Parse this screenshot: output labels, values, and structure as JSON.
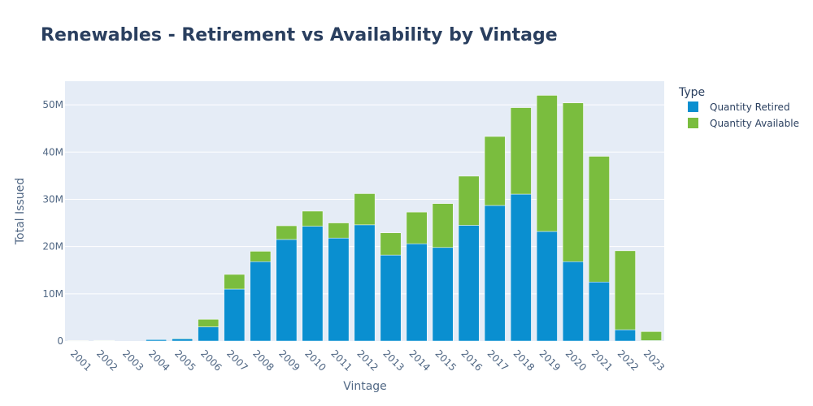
{
  "chart_data": {
    "type": "bar",
    "stacked": true,
    "title": "Renewables - Retirement vs Availability by Vintage",
    "xlabel": "Vintage",
    "ylabel": "Total Issued",
    "ylim": [
      0,
      55000000
    ],
    "yticks": [
      0,
      10000000,
      20000000,
      30000000,
      40000000,
      50000000
    ],
    "ytick_labels": [
      "0",
      "10M",
      "20M",
      "30M",
      "40M",
      "50M"
    ],
    "grid": true,
    "legend_title": "Type",
    "legend_position": "top-right",
    "categories": [
      "2001",
      "2002",
      "2003",
      "2004",
      "2005",
      "2006",
      "2007",
      "2008",
      "2009",
      "2010",
      "2011",
      "2012",
      "2013",
      "2014",
      "2015",
      "2016",
      "2017",
      "2018",
      "2019",
      "2020",
      "2021",
      "2022",
      "2023"
    ],
    "series": [
      {
        "name": "Quantity Retired",
        "color": "#0a8fd0",
        "values": [
          50000,
          100000,
          0,
          300000,
          500000,
          3000000,
          11000000,
          16800000,
          21500000,
          24300000,
          21800000,
          24600000,
          18200000,
          20600000,
          19800000,
          24500000,
          28700000,
          31100000,
          23200000,
          16800000,
          12500000,
          2400000,
          100000
        ]
      },
      {
        "name": "Quantity Available",
        "color": "#7abd3e",
        "values": [
          50000,
          50000,
          0,
          0,
          100000,
          1600000,
          3100000,
          2200000,
          2900000,
          3200000,
          3200000,
          6600000,
          4700000,
          6700000,
          9300000,
          10400000,
          14600000,
          18300000,
          28800000,
          33600000,
          26600000,
          16700000,
          1900000
        ]
      }
    ]
  }
}
